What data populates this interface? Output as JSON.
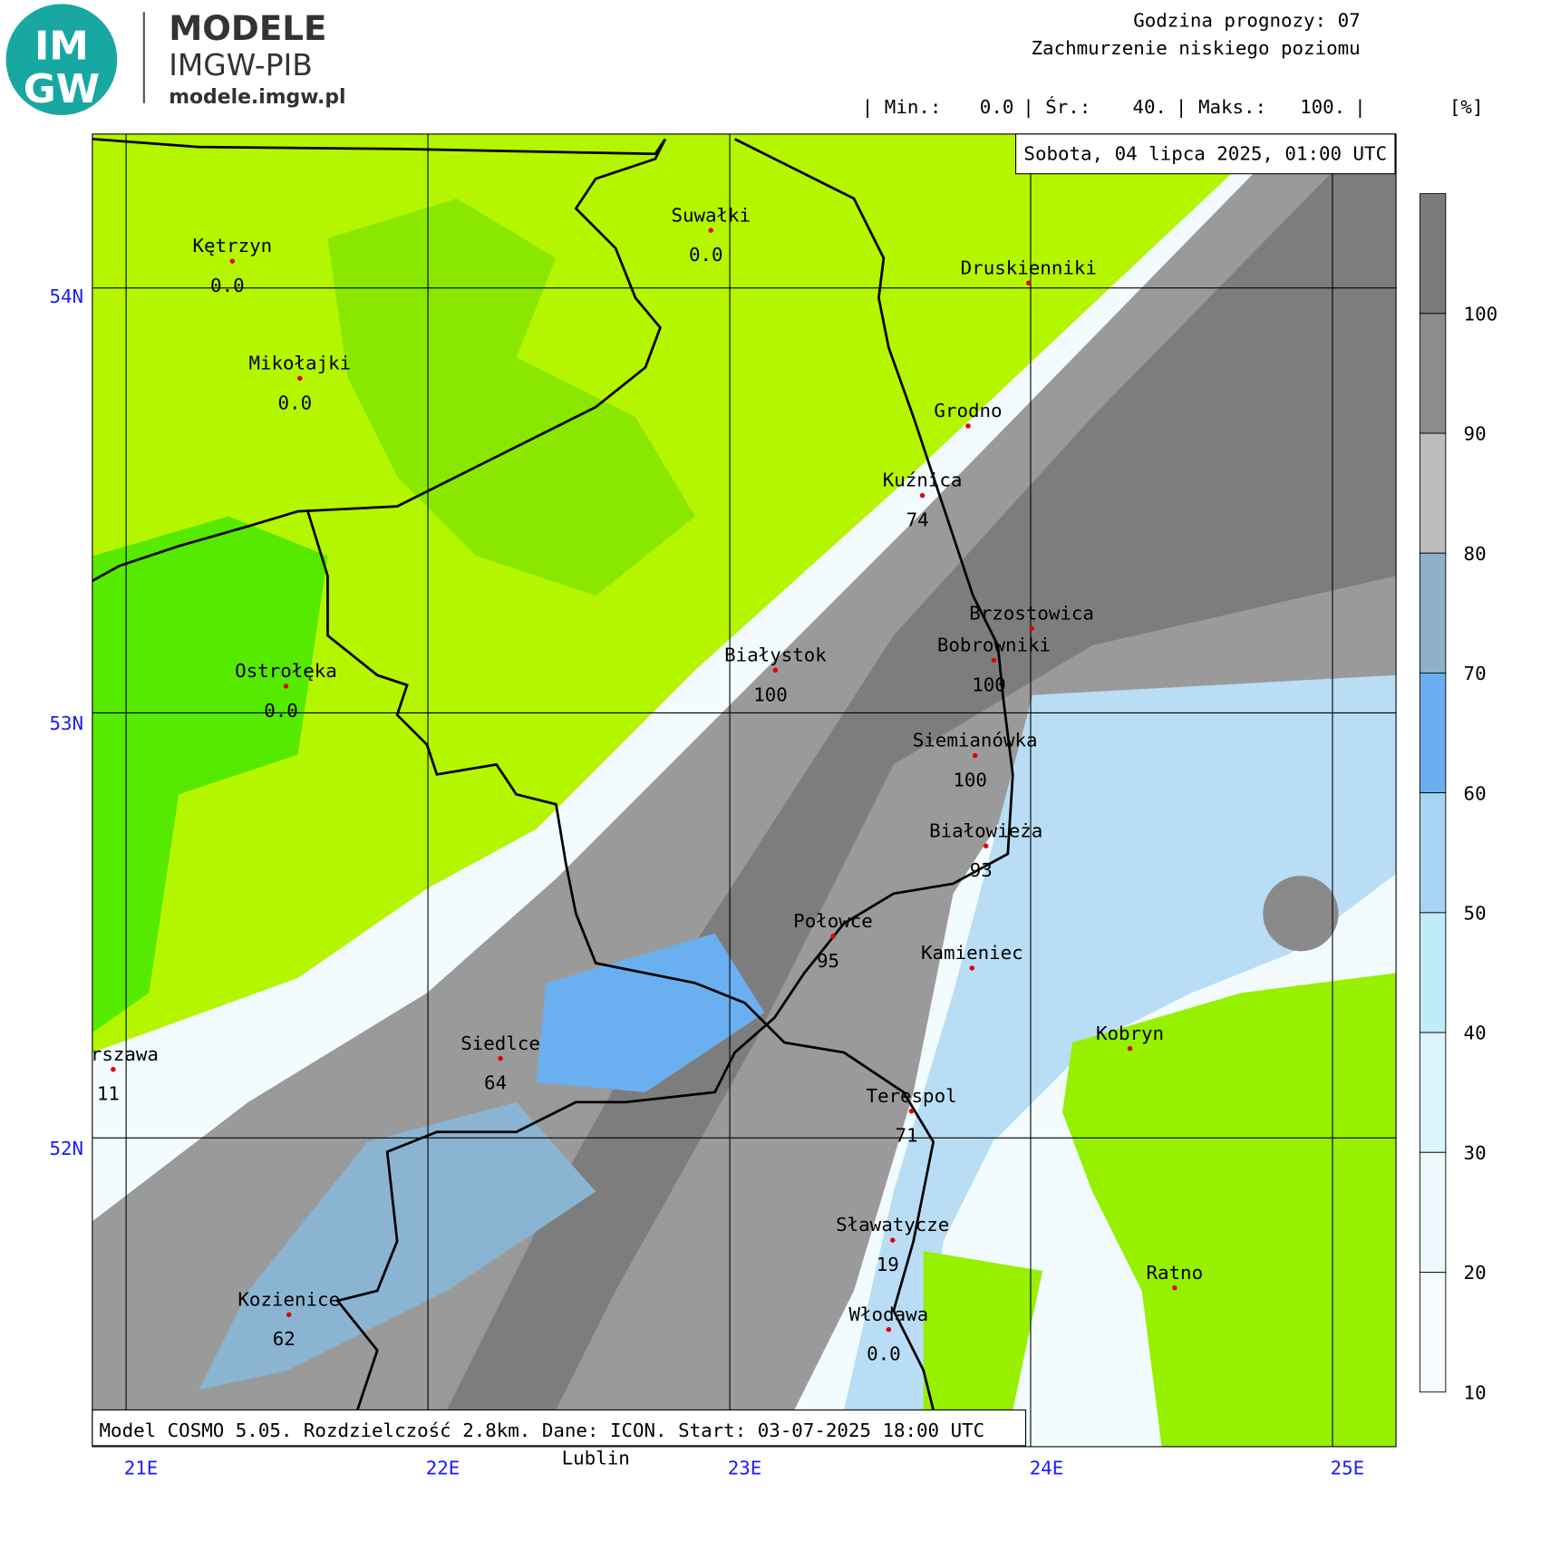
{
  "header": {
    "logo_top": "IM",
    "logo_bottom": "GW",
    "brand": "MODELE",
    "org": "IMGW-PIB",
    "url": "modele.imgw.pl",
    "forecast_hour": "Godzina prognozy: 07",
    "field": "Zachmurzenie niskiego poziomu",
    "stats": {
      "min_label": "| Min.:",
      "min": "0.0",
      "mean_label": "| Śr.:",
      "mean": "40.",
      "max_label": "| Maks.:",
      "max": "100.",
      "end": "|",
      "unit": "[%]"
    }
  },
  "map": {
    "date": "Sobota, 04 lipca 2025, 01:00 UTC",
    "footer": "Model COSMO 5.05. Rozdzielczość 2.8km. Dane: ICON. Start: 03-07-2025 18:00 UTC",
    "extra_label": "Lublin",
    "lat_labels": [
      "54N",
      "53N",
      "52N"
    ],
    "lon_labels": [
      "21E",
      "22E",
      "23E",
      "24E",
      "25E"
    ],
    "cities": [
      {
        "name": "Kętrzyn",
        "value": "0.0"
      },
      {
        "name": "Suwałki",
        "value": "0.0"
      },
      {
        "name": "Mikołajki",
        "value": "0.0"
      },
      {
        "name": "Druskienniki"
      },
      {
        "name": "Grodno"
      },
      {
        "name": "Kuźnica",
        "value": "74"
      },
      {
        "name": "Brzostowica"
      },
      {
        "name": "Bobrowniki",
        "value": "100"
      },
      {
        "name": "Białystok",
        "value": "100"
      },
      {
        "name": "Ostrołęka",
        "value": "0.0"
      },
      {
        "name": "Siemianówka",
        "value": "100"
      },
      {
        "name": "Białowieża",
        "value": "93"
      },
      {
        "name": "Połowce",
        "value": "95"
      },
      {
        "name": "Kamieniec"
      },
      {
        "name": "Warszawa",
        "value": "11"
      },
      {
        "name": "Siedlce",
        "value": "64"
      },
      {
        "name": "Terespol",
        "value": "71"
      },
      {
        "name": "Kobryn"
      },
      {
        "name": "Sławatycze",
        "value": "19"
      },
      {
        "name": "Kozienice",
        "value": "62"
      },
      {
        "name": "Włodawa",
        "value": "0.0"
      },
      {
        "name": "Ratno"
      }
    ]
  },
  "legend": {
    "labels": [
      "100",
      "90",
      "80",
      "70",
      "60",
      "50",
      "40",
      "30",
      "20",
      "10"
    ]
  }
}
